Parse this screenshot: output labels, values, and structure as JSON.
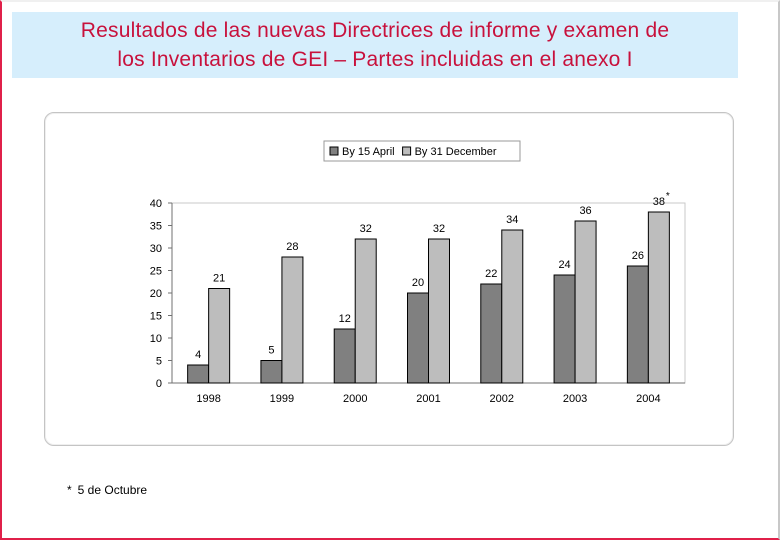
{
  "slide": {
    "title_line1": "Resultados de las nuevas Directrices de informe y examen de",
    "title_line2": "los Inventarios de GEI – Partes incluidas en el anexo I",
    "footnote_marker": "*",
    "footnote_text": "5 de Octubre",
    "colors": {
      "title_text": "#c8113c",
      "title_background": "#d6eefc",
      "frame_accent": "#e0204a"
    }
  },
  "chart_data": {
    "type": "bar",
    "categories": [
      "1998",
      "1999",
      "2000",
      "2001",
      "2002",
      "2003",
      "2004"
    ],
    "series": [
      {
        "name": "By 15 April",
        "values": [
          4,
          5,
          12,
          20,
          22,
          24,
          26
        ],
        "color": "#808080"
      },
      {
        "name": "By 31 December",
        "values": [
          21,
          28,
          32,
          32,
          34,
          36,
          38
        ],
        "color": "#bdbdbd"
      }
    ],
    "ylim": [
      0,
      40
    ],
    "yticks": [
      0,
      5,
      10,
      15,
      20,
      25,
      30,
      35,
      40
    ],
    "grid": false,
    "legend_position": "top",
    "data_labels": true,
    "annotation": {
      "category": "2004",
      "series": "By 31 December",
      "text": "*"
    },
    "title": "",
    "xlabel": "",
    "ylabel": ""
  }
}
